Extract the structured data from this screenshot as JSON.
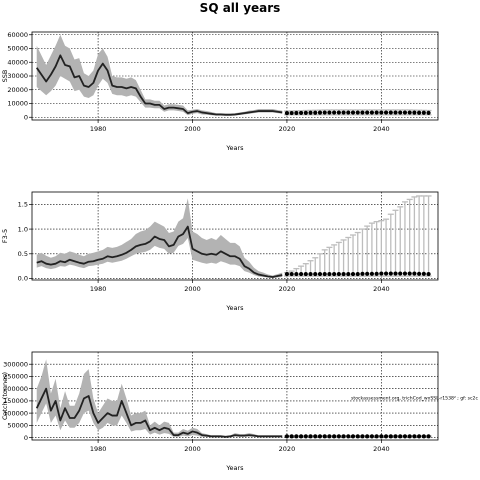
{
  "figure": {
    "title": "SQ all years"
  },
  "chart_data": [
    {
      "type": "line",
      "name": "panel-ssb",
      "xlabel": "Years",
      "ylabel": "SSB",
      "xlim": [
        1966,
        2052
      ],
      "ylim": [
        -2000,
        62000
      ],
      "xticks": [
        1980,
        2000,
        2020,
        2040
      ],
      "yticks": [
        0,
        10000,
        20000,
        30000,
        40000,
        50000,
        60000
      ],
      "ytick_labels": [
        "0",
        "10000",
        "20000",
        "30000",
        "40000",
        "50000",
        "60000"
      ],
      "grid": true,
      "hist_x": [
        1967,
        1968,
        1969,
        1970,
        1971,
        1972,
        1973,
        1974,
        1975,
        1976,
        1977,
        1978,
        1979,
        1980,
        1981,
        1982,
        1983,
        1984,
        1985,
        1986,
        1987,
        1988,
        1989,
        1990,
        1991,
        1992,
        1993,
        1994,
        1995,
        1996,
        1997,
        1998,
        1999,
        2000,
        2001,
        2002,
        2003,
        2004,
        2005,
        2006,
        2007,
        2008,
        2009,
        2010,
        2011,
        2012,
        2013,
        2014,
        2015,
        2016,
        2017,
        2018,
        2019
      ],
      "hist_median": [
        36000,
        31000,
        26000,
        31000,
        37000,
        45000,
        38000,
        37000,
        29000,
        30000,
        23000,
        22000,
        25000,
        34000,
        39000,
        34000,
        23000,
        22000,
        22000,
        21000,
        22000,
        21000,
        15000,
        10000,
        10000,
        9000,
        9000,
        6000,
        7000,
        7000,
        6500,
        6000,
        3000,
        4000,
        4500,
        3500,
        3000,
        2500,
        2000,
        2000,
        1800,
        1800,
        2000,
        2500,
        3000,
        3500,
        4000,
        4500,
        4500,
        4500,
        4500,
        4000,
        3500
      ],
      "hist_lower": [
        22000,
        19000,
        16000,
        19000,
        23000,
        30000,
        28000,
        26000,
        19000,
        20000,
        15000,
        14000,
        16000,
        23000,
        28000,
        25000,
        17000,
        16000,
        16000,
        15000,
        16000,
        15000,
        11000,
        7000,
        7000,
        6500,
        6500,
        4000,
        5000,
        5000,
        4500,
        4000,
        1500,
        2500,
        3000,
        2000,
        1800,
        1500,
        1200,
        1200,
        1000,
        1000,
        1200,
        1600,
        2000,
        2500,
        3000,
        3500,
        3500,
        3500,
        3500,
        3000,
        2500
      ],
      "hist_upper": [
        52000,
        45000,
        38000,
        45000,
        52000,
        60000,
        52000,
        50000,
        42000,
        43000,
        32000,
        30000,
        34000,
        46000,
        50000,
        44000,
        30000,
        29000,
        29000,
        28000,
        29000,
        27000,
        20000,
        13000,
        13000,
        12000,
        12000,
        8500,
        9500,
        9500,
        9000,
        8500,
        5000,
        5500,
        6000,
        5000,
        4500,
        3800,
        3000,
        3000,
        2800,
        2800,
        3000,
        3500,
        4000,
        4800,
        5200,
        6000,
        6000,
        6000,
        6000,
        5300,
        4800
      ],
      "proj_x": [
        2020,
        2021,
        2022,
        2023,
        2024,
        2025,
        2026,
        2027,
        2028,
        2029,
        2030,
        2031,
        2032,
        2033,
        2034,
        2035,
        2036,
        2037,
        2038,
        2039,
        2040,
        2041,
        2042,
        2043,
        2044,
        2045,
        2046,
        2047,
        2048,
        2049,
        2050
      ],
      "proj_median": [
        3000,
        3050,
        3100,
        3150,
        3200,
        3250,
        3300,
        3350,
        3400,
        3400,
        3400,
        3400,
        3400,
        3400,
        3400,
        3400,
        3400,
        3400,
        3400,
        3400,
        3400,
        3400,
        3400,
        3400,
        3400,
        3400,
        3400,
        3350,
        3300,
        3250,
        3200
      ],
      "proj_lower": [
        1800,
        1800,
        1800,
        1800,
        1800,
        1800,
        1800,
        1800,
        1800,
        1800,
        1800,
        1800,
        1800,
        1800,
        1800,
        1800,
        1800,
        1800,
        1800,
        1800,
        1800,
        1800,
        1800,
        1800,
        1800,
        1800,
        1800,
        1800,
        1800,
        1800,
        1800
      ],
      "proj_upper": [
        4500,
        4600,
        4700,
        4800,
        4900,
        5000,
        5100,
        5200,
        5300,
        5300,
        5300,
        5300,
        5300,
        5300,
        5300,
        5300,
        5300,
        5300,
        5300,
        5300,
        5300,
        5300,
        5300,
        5300,
        5300,
        5300,
        5300,
        5200,
        5100,
        5000,
        4900
      ],
      "annotation": ""
    },
    {
      "type": "line",
      "name": "panel-f",
      "xlabel": "Years",
      "ylabel": "F3-5",
      "xlim": [
        1966,
        2052
      ],
      "ylim": [
        -0.03,
        1.75
      ],
      "xticks": [
        1980,
        2000,
        2020,
        2040
      ],
      "yticks": [
        0,
        0.5,
        1.0,
        1.5
      ],
      "ytick_labels": [
        "0.0",
        "0.5",
        "1.0",
        "1.5"
      ],
      "grid": true,
      "hist_x": [
        1967,
        1968,
        1969,
        1970,
        1971,
        1972,
        1973,
        1974,
        1975,
        1976,
        1977,
        1978,
        1979,
        1980,
        1981,
        1982,
        1983,
        1984,
        1985,
        1986,
        1987,
        1988,
        1989,
        1990,
        1991,
        1992,
        1993,
        1994,
        1995,
        1996,
        1997,
        1998,
        1999,
        2000,
        2001,
        2002,
        2003,
        2004,
        2005,
        2006,
        2007,
        2008,
        2009,
        2010,
        2011,
        2012,
        2013,
        2014,
        2015,
        2016,
        2017,
        2018,
        2019
      ],
      "hist_median": [
        0.32,
        0.35,
        0.3,
        0.28,
        0.3,
        0.35,
        0.33,
        0.38,
        0.35,
        0.32,
        0.3,
        0.34,
        0.35,
        0.38,
        0.4,
        0.45,
        0.43,
        0.45,
        0.48,
        0.52,
        0.58,
        0.65,
        0.68,
        0.7,
        0.75,
        0.85,
        0.8,
        0.78,
        0.65,
        0.68,
        0.85,
        0.9,
        1.05,
        0.6,
        0.55,
        0.5,
        0.48,
        0.5,
        0.48,
        0.55,
        0.5,
        0.45,
        0.45,
        0.4,
        0.25,
        0.2,
        0.12,
        0.08,
        0.06,
        0.04,
        0.03,
        0.05,
        0.07
      ],
      "hist_lower": [
        0.22,
        0.25,
        0.21,
        0.19,
        0.21,
        0.25,
        0.24,
        0.28,
        0.26,
        0.23,
        0.21,
        0.25,
        0.26,
        0.28,
        0.3,
        0.34,
        0.32,
        0.34,
        0.36,
        0.4,
        0.45,
        0.5,
        0.52,
        0.54,
        0.58,
        0.66,
        0.62,
        0.6,
        0.5,
        0.52,
        0.66,
        0.7,
        0.82,
        0.38,
        0.35,
        0.32,
        0.3,
        0.32,
        0.3,
        0.35,
        0.32,
        0.28,
        0.28,
        0.25,
        0.15,
        0.12,
        0.07,
        0.04,
        0.03,
        0.02,
        0.01,
        0.02,
        0.03
      ],
      "hist_upper": [
        0.48,
        0.52,
        0.46,
        0.42,
        0.45,
        0.52,
        0.5,
        0.55,
        0.52,
        0.48,
        0.45,
        0.5,
        0.52,
        0.55,
        0.58,
        0.64,
        0.62,
        0.64,
        0.68,
        0.74,
        0.8,
        0.9,
        0.95,
        0.98,
        1.05,
        1.15,
        1.1,
        1.05,
        0.92,
        0.95,
        1.15,
        1.22,
        1.62,
        0.95,
        0.9,
        0.82,
        0.78,
        0.82,
        0.78,
        0.88,
        0.8,
        0.72,
        0.72,
        0.65,
        0.42,
        0.34,
        0.22,
        0.15,
        0.12,
        0.08,
        0.06,
        0.09,
        0.12
      ],
      "proj_x": [
        2020,
        2021,
        2022,
        2023,
        2024,
        2025,
        2026,
        2027,
        2028,
        2029,
        2030,
        2031,
        2032,
        2033,
        2034,
        2035,
        2036,
        2037,
        2038,
        2039,
        2040,
        2041,
        2042,
        2043,
        2044,
        2045,
        2046,
        2047,
        2048,
        2049,
        2050
      ],
      "proj_median": [
        0.09,
        0.09,
        0.09,
        0.09,
        0.09,
        0.09,
        0.09,
        0.09,
        0.09,
        0.09,
        0.09,
        0.09,
        0.09,
        0.09,
        0.09,
        0.09,
        0.095,
        0.095,
        0.095,
        0.095,
        0.1,
        0.1,
        0.1,
        0.1,
        0.1,
        0.1,
        0.1,
        0.1,
        0.095,
        0.095,
        0.09
      ],
      "proj_lower": [
        0.05,
        0.05,
        0.05,
        0.05,
        0.05,
        0.05,
        0.05,
        0.05,
        0.05,
        0.05,
        0.05,
        0.05,
        0.05,
        0.05,
        0.05,
        0.05,
        0.05,
        0.05,
        0.05,
        0.05,
        0.05,
        0.05,
        0.05,
        0.05,
        0.05,
        0.05,
        0.05,
        0.05,
        0.05,
        0.05,
        0.05
      ],
      "proj_upper": [
        0.12,
        0.15,
        0.2,
        0.25,
        0.3,
        0.36,
        0.42,
        0.5,
        0.58,
        0.63,
        0.68,
        0.73,
        0.78,
        0.83,
        0.88,
        0.93,
        1.0,
        1.06,
        1.12,
        1.15,
        1.17,
        1.2,
        1.3,
        1.38,
        1.45,
        1.55,
        1.6,
        1.65,
        1.67,
        1.67,
        1.67
      ],
      "annotation": ""
    },
    {
      "type": "line",
      "name": "panel-catch",
      "xlabel": "Years",
      "ylabel": "Catch (tonnes)",
      "xlim": [
        1966,
        2052
      ],
      "ylim": [
        -10000,
        350000
      ],
      "xticks": [
        1980,
        2000,
        2020,
        2040
      ],
      "yticks": [
        0,
        50000,
        100000,
        150000,
        200000,
        250000,
        300000
      ],
      "ytick_labels": [
        "0",
        "50000",
        "100000",
        "150000",
        "200000",
        "250000",
        "300000"
      ],
      "grid": true,
      "hist_x": [
        1967,
        1968,
        1969,
        1970,
        1971,
        1972,
        1973,
        1974,
        1975,
        1976,
        1977,
        1978,
        1979,
        1980,
        1981,
        1982,
        1983,
        1984,
        1985,
        1986,
        1987,
        1988,
        1989,
        1990,
        1991,
        1992,
        1993,
        1994,
        1995,
        1996,
        1997,
        1998,
        1999,
        2000,
        2001,
        2002,
        2003,
        2004,
        2005,
        2006,
        2007,
        2008,
        2009,
        2010,
        2011,
        2012,
        2013,
        2014,
        2015,
        2016,
        2017,
        2018,
        2019
      ],
      "hist_median": [
        120000,
        160000,
        200000,
        110000,
        150000,
        70000,
        120000,
        80000,
        80000,
        110000,
        160000,
        170000,
        100000,
        60000,
        80000,
        100000,
        90000,
        90000,
        150000,
        100000,
        50000,
        60000,
        60000,
        70000,
        30000,
        40000,
        30000,
        40000,
        35000,
        10000,
        10000,
        20000,
        15000,
        25000,
        20000,
        10000,
        8000,
        5000,
        5000,
        5000,
        3000,
        5000,
        10000,
        8000,
        8000,
        10000,
        8000,
        5000,
        5000,
        5000,
        5000,
        5000,
        5000
      ],
      "hist_lower": [
        60000,
        100000,
        140000,
        60000,
        90000,
        30000,
        70000,
        40000,
        40000,
        60000,
        100000,
        110000,
        60000,
        30000,
        40000,
        60000,
        50000,
        50000,
        90000,
        60000,
        25000,
        30000,
        30000,
        35000,
        12000,
        20000,
        12000,
        18000,
        15000,
        3000,
        3000,
        8000,
        5000,
        10000,
        8000,
        3000,
        2500,
        1500,
        1500,
        1500,
        800,
        1500,
        4000,
        3000,
        3000,
        4000,
        3000,
        1500,
        1500,
        1500,
        1500,
        1500,
        1500
      ],
      "hist_upper": [
        200000,
        250000,
        320000,
        180000,
        240000,
        120000,
        190000,
        130000,
        130000,
        180000,
        260000,
        280000,
        160000,
        100000,
        130000,
        160000,
        150000,
        150000,
        220000,
        160000,
        90000,
        100000,
        100000,
        110000,
        50000,
        65000,
        50000,
        65000,
        60000,
        20000,
        20000,
        35000,
        28000,
        40000,
        35000,
        18000,
        14000,
        9000,
        9000,
        9000,
        6000,
        9000,
        18000,
        14000,
        14000,
        18000,
        14000,
        9000,
        9000,
        9000,
        9000,
        9000,
        9000
      ],
      "proj_x": [
        2020,
        2021,
        2022,
        2023,
        2024,
        2025,
        2026,
        2027,
        2028,
        2029,
        2030,
        2031,
        2032,
        2033,
        2034,
        2035,
        2036,
        2037,
        2038,
        2039,
        2040,
        2041,
        2042,
        2043,
        2044,
        2045,
        2046,
        2047,
        2048,
        2049,
        2050
      ],
      "proj_median": [
        5000,
        5000,
        5000,
        5000,
        5000,
        5000,
        5000,
        5000,
        5000,
        5000,
        5000,
        5000,
        5000,
        5000,
        5000,
        5000,
        5000,
        5000,
        5000,
        5000,
        5000,
        5000,
        5000,
        5000,
        5000,
        5000,
        5000,
        5000,
        5000,
        5000,
        5000
      ],
      "proj_lower": [
        3000,
        3000,
        3000,
        3000,
        3000,
        3000,
        3000,
        3000,
        3000,
        3000,
        3000,
        3000,
        3000,
        3000,
        3000,
        3000,
        3000,
        3000,
        3000,
        3000,
        3000,
        3000,
        3000,
        3000,
        3000,
        3000,
        3000,
        3000,
        3000,
        3000,
        3000
      ],
      "proj_upper": [
        7000,
        7000,
        7000,
        7000,
        7000,
        7000,
        7000,
        7000,
        7000,
        7000,
        7000,
        7000,
        7000,
        7000,
        7000,
        7000,
        7000,
        7000,
        7000,
        7000,
        7000,
        7000,
        7000,
        7000,
        7000,
        7000,
        7000,
        7000,
        7000,
        7000,
        7000
      ],
      "annotation": "stockassessment.org, trichCod_wxSSL-r1538² ; gf: sc2c"
    }
  ]
}
